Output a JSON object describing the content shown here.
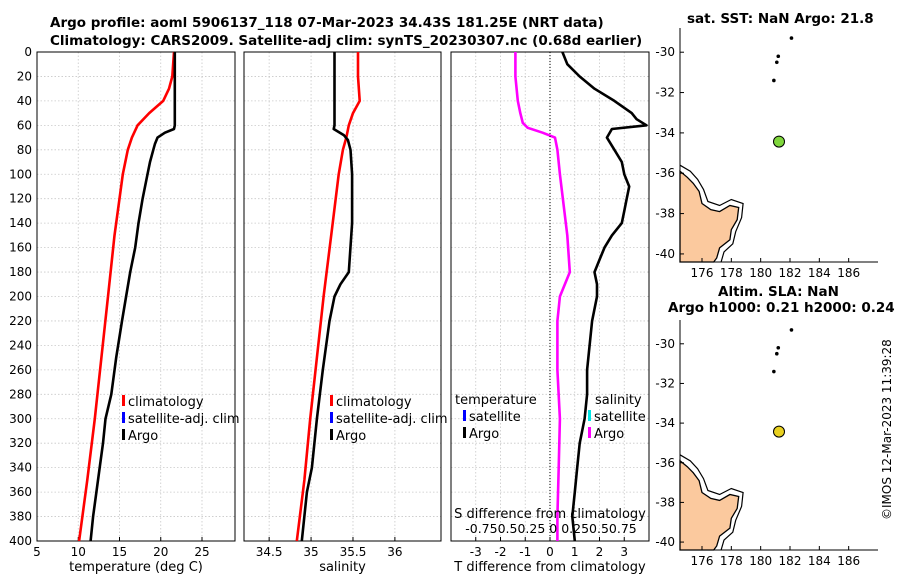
{
  "title": {
    "line1": "Argo profile: aoml 5906137_118 07-Mar-2023 34.43S 181.25E (NRT data)",
    "line2": "Climatology: CARS2009. Satellite-adj clim: synTS_20230307.nc (0.68d earlier)"
  },
  "map1": {
    "title": "sat. SST: NaN Argo: 21.8",
    "marker_color": "#7fd63c"
  },
  "map2": {
    "title_line1": "Altim. SLA: NaN",
    "title_line2": "Argo h1000: 0.21 h2000: 0.24",
    "marker_color": "#e8d020"
  },
  "copyright": "©IMOS 12-Mar-2023 11:39:28",
  "colors": {
    "climatology": "#ff0000",
    "satellite": "#0000ff",
    "argo": "#000000",
    "satellite_s": "#00e5e5",
    "argo_diff_s": "#ff00ff",
    "land": "#fbc99e"
  },
  "chart_data": [
    {
      "id": "temperature",
      "type": "line",
      "xlabel": "temperature (deg C)",
      "ylabel": "",
      "xlim": [
        5,
        29
      ],
      "ylim": [
        400,
        0
      ],
      "xticks": [
        "5",
        "10",
        "15",
        "20",
        "25"
      ],
      "xtick_values": [
        5,
        10,
        15,
        20,
        25
      ],
      "yticks": [
        "0",
        "20",
        "40",
        "60",
        "80",
        "100",
        "120",
        "140",
        "160",
        "180",
        "200",
        "220",
        "240",
        "260",
        "280",
        "300",
        "320",
        "340",
        "360",
        "380",
        "400"
      ],
      "legend": [
        "climatology",
        "satellite-adj. clim",
        "Argo"
      ],
      "series": [
        {
          "name": "climatology",
          "color": "#ff0000",
          "depth": [
            0,
            20,
            30,
            40,
            50,
            60,
            70,
            80,
            100,
            120,
            150,
            200,
            250,
            300,
            350,
            400
          ],
          "values": [
            21.6,
            21.4,
            21.0,
            20.3,
            18.6,
            17.2,
            16.5,
            16.0,
            15.4,
            15.0,
            14.4,
            13.6,
            12.8,
            12.0,
            11.1,
            10.1
          ]
        },
        {
          "name": "Argo",
          "color": "#000000",
          "depth": [
            0,
            30,
            60,
            63,
            66,
            70,
            75,
            80,
            90,
            100,
            120,
            140,
            160,
            180,
            200,
            220,
            250,
            280,
            300,
            320,
            340,
            360,
            380,
            400
          ],
          "values": [
            21.7,
            21.7,
            21.7,
            21.6,
            20.5,
            19.6,
            19.3,
            19.1,
            18.7,
            18.4,
            17.8,
            17.3,
            16.9,
            16.3,
            15.8,
            15.3,
            14.6,
            14.0,
            13.3,
            13.0,
            12.6,
            12.2,
            11.8,
            11.5
          ]
        }
      ]
    },
    {
      "id": "salinity",
      "type": "line",
      "xlabel": "salinity",
      "ylabel": "",
      "xlim": [
        34.2,
        36.55
      ],
      "xticks": [
        "34.5",
        "35",
        "35.5",
        "36"
      ],
      "xtick_values": [
        34.5,
        35,
        35.5,
        36
      ],
      "ylim": [
        400,
        0
      ],
      "legend": [
        "climatology",
        "satellite-adj. clim",
        "Argo"
      ],
      "series": [
        {
          "name": "climatology",
          "color": "#ff0000",
          "depth": [
            0,
            20,
            40,
            50,
            60,
            70,
            80,
            100,
            150,
            200,
            250,
            300,
            350,
            400
          ],
          "values": [
            35.56,
            35.56,
            35.58,
            35.5,
            35.45,
            35.42,
            35.38,
            35.33,
            35.24,
            35.15,
            35.07,
            34.99,
            34.92,
            34.83
          ]
        },
        {
          "name": "Argo",
          "color": "#000000",
          "depth": [
            0,
            60,
            63,
            68,
            72,
            80,
            100,
            140,
            180,
            190,
            200,
            220,
            260,
            300,
            340,
            360,
            400
          ],
          "values": [
            35.28,
            35.28,
            35.27,
            35.39,
            35.44,
            35.47,
            35.49,
            35.49,
            35.45,
            35.35,
            35.28,
            35.22,
            35.14,
            35.07,
            35.01,
            34.95,
            34.89
          ]
        }
      ]
    },
    {
      "id": "difference",
      "type": "line",
      "xlabel": "T difference from climatology",
      "xlabel_top": "S difference from climatology",
      "xlim": [
        -4,
        4
      ],
      "xticks": [
        "-3",
        "-2",
        "-1",
        "0",
        "1",
        "2",
        "3"
      ],
      "xtick_values": [
        -3,
        -2,
        -1,
        0,
        1,
        2,
        3
      ],
      "s_ticks": "-0.750.50.25 0 0.250.50.75",
      "ylim": [
        400,
        0
      ],
      "legend_t_title": "temperature",
      "legend_t": [
        "satellite",
        "Argo"
      ],
      "legend_s_title": "salinity",
      "legend_s": [
        "satellite",
        "Argo"
      ],
      "series": [
        {
          "name": "T difference (Argo - clim)",
          "color": "#000000",
          "depth": [
            0,
            10,
            20,
            30,
            40,
            50,
            55,
            60,
            63,
            70,
            80,
            90,
            100,
            110,
            120,
            130,
            140,
            150,
            160,
            170,
            180,
            190,
            200,
            220,
            240,
            260,
            280,
            300,
            320,
            340,
            360,
            380,
            400
          ],
          "values": [
            0.5,
            0.7,
            1.2,
            1.8,
            2.6,
            3.3,
            3.5,
            3.9,
            2.5,
            2.3,
            2.6,
            2.9,
            3.0,
            3.2,
            3.1,
            3.0,
            2.9,
            2.5,
            2.2,
            2.0,
            1.8,
            1.9,
            1.9,
            1.7,
            1.6,
            1.5,
            1.5,
            1.4,
            1.2,
            1.1,
            1.0,
            0.9,
            1.0
          ]
        },
        {
          "name": "S difference (Argo - clim)",
          "color": "#ff00ff",
          "depth": [
            0,
            20,
            40,
            50,
            58,
            62,
            66,
            70,
            80,
            100,
            150,
            180,
            200,
            220,
            260,
            300,
            340,
            380,
            400
          ],
          "values": [
            -1.4,
            -1.4,
            -1.3,
            -1.2,
            -1.1,
            -0.9,
            -0.3,
            0.2,
            0.3,
            0.4,
            0.7,
            0.8,
            0.4,
            0.3,
            0.3,
            0.4,
            0.35,
            0.3,
            0.3
          ]
        }
      ]
    },
    {
      "id": "map-sst",
      "type": "scatter",
      "xlim": [
        174.5,
        188
      ],
      "xticks": [
        "176",
        "178",
        "180",
        "182",
        "184",
        "186"
      ],
      "xtick_values": [
        176,
        178,
        180,
        182,
        184,
        186
      ],
      "ylim": [
        -40.4,
        -28.8
      ],
      "yticks": [
        "-30",
        "-32",
        "-34",
        "-36",
        "-38",
        "-40"
      ],
      "ytick_values": [
        -30,
        -32,
        -34,
        -36,
        -38,
        -40
      ],
      "profile_position": {
        "lon": 181.25,
        "lat": -34.43
      },
      "islands": [
        {
          "lon": 182.1,
          "lat": -29.3
        },
        {
          "lon": 181.2,
          "lat": -30.2
        },
        {
          "lon": 181.1,
          "lat": -30.5
        },
        {
          "lon": 180.9,
          "lat": -31.4
        }
      ]
    },
    {
      "id": "map-sla",
      "type": "scatter",
      "xlim": [
        174.5,
        188
      ],
      "xticks": [
        "176",
        "178",
        "180",
        "182",
        "184",
        "186"
      ],
      "xtick_values": [
        176,
        178,
        180,
        182,
        184,
        186
      ],
      "ylim": [
        -40.4,
        -28.8
      ],
      "yticks": [
        "-30",
        "-32",
        "-34",
        "-36",
        "-38",
        "-40"
      ],
      "ytick_values": [
        -30,
        -32,
        -34,
        -36,
        -38,
        -40
      ],
      "profile_position": {
        "lon": 181.25,
        "lat": -34.43
      },
      "islands": [
        {
          "lon": 182.1,
          "lat": -29.3
        },
        {
          "lon": 181.2,
          "lat": -30.2
        },
        {
          "lon": 181.1,
          "lat": -30.5
        },
        {
          "lon": 180.9,
          "lat": -31.4
        }
      ]
    }
  ]
}
